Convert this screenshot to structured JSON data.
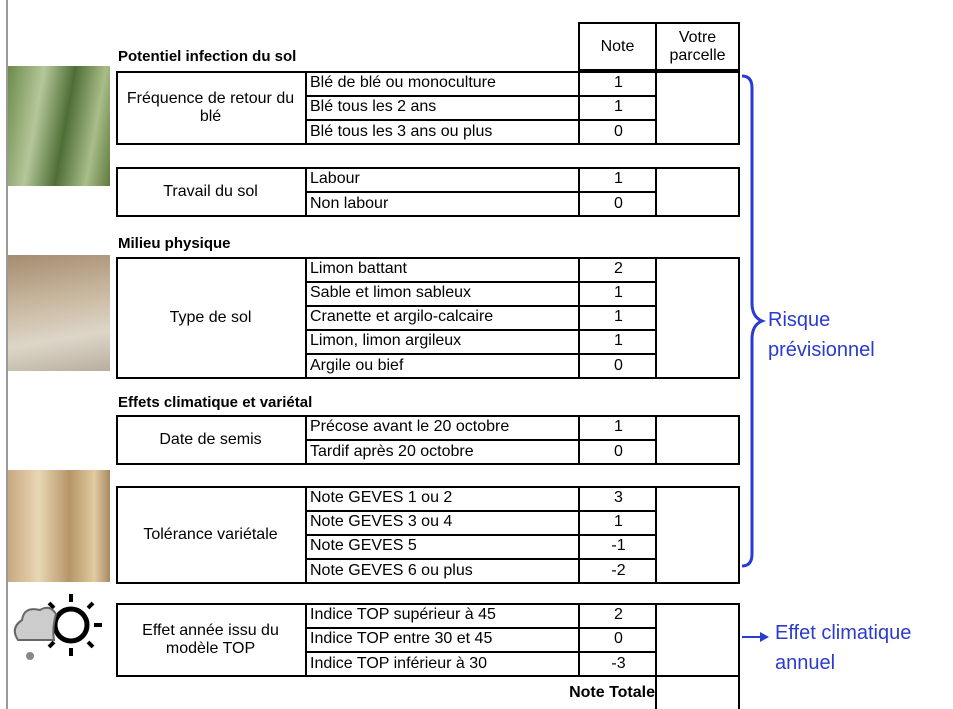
{
  "header": {
    "note_label": "Note",
    "votre_label": "Votre parcelle"
  },
  "sections": [
    {
      "title": "Potentiel infection du sol",
      "groups": [
        {
          "label": "Fréquence de retour du blé",
          "rows": [
            {
              "label": "Blé de blé ou monoculture",
              "note": 1
            },
            {
              "label": "Blé tous les 2 ans",
              "note": 1
            },
            {
              "label": "Blé tous les 3 ans ou plus",
              "note": 0
            }
          ]
        },
        {
          "label": "Travail du sol",
          "rows": [
            {
              "label": "Labour",
              "note": 1
            },
            {
              "label": "Non labour",
              "note": 0
            }
          ]
        }
      ]
    },
    {
      "title": "Milieu physique",
      "groups": [
        {
          "label": "Type de sol",
          "rows": [
            {
              "label": "Limon battant",
              "note": 2
            },
            {
              "label": "Sable et limon sableux",
              "note": 1
            },
            {
              "label": "Cranette et argilo-calcaire",
              "note": 1
            },
            {
              "label": "Limon, limon argileux",
              "note": 1
            },
            {
              "label": "Argile ou bief",
              "note": 0
            }
          ]
        }
      ]
    },
    {
      "title": "Effets climatique et variétal",
      "groups": [
        {
          "label": "Date de semis",
          "rows": [
            {
              "label": "Précose avant le 20 octobre",
              "note": 1
            },
            {
              "label": "Tardif après 20 octobre",
              "note": 0
            }
          ]
        },
        {
          "label": "Tolérance variétale",
          "rows": [
            {
              "label": "Note GEVES 1 ou 2",
              "note": 3
            },
            {
              "label": "Note GEVES 3 ou 4",
              "note": 1
            },
            {
              "label": "Note GEVES 5",
              "note": -1
            },
            {
              "label": "Note GEVES 6 ou plus",
              "note": -2
            }
          ]
        }
      ]
    },
    {
      "groups": [
        {
          "label": "Effet année issu du modèle TOP",
          "rows": [
            {
              "label": "Indice TOP supérieur à 45",
              "note": 2
            },
            {
              "label": "Indice TOP entre 30 et 45",
              "note": 0
            },
            {
              "label": "Indice TOP inférieur à 30",
              "note": -3
            }
          ]
        }
      ]
    }
  ],
  "total_label": "Note Totale",
  "side_labels": {
    "risk": "Risque prévisionnel",
    "annual": "Effet climatique annuel"
  }
}
